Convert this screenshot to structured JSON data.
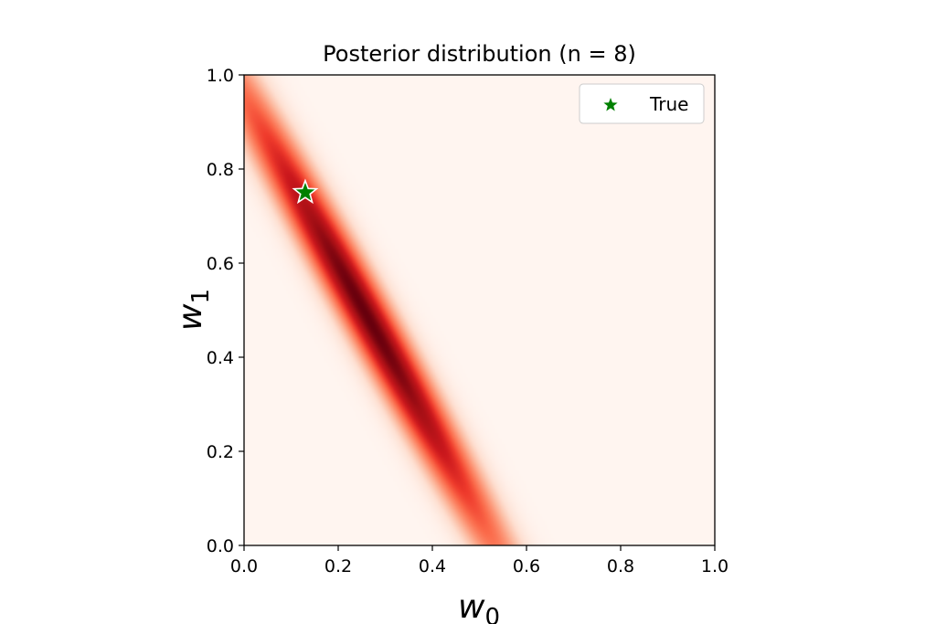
{
  "chart_data": {
    "type": "heatmap",
    "title": "Posterior distribution (n = 8)",
    "xlabel": {
      "symbol": "w",
      "subscript": "0"
    },
    "ylabel": {
      "symbol": "w",
      "subscript": "1"
    },
    "xlim": [
      0.0,
      1.0
    ],
    "ylim": [
      0.0,
      1.0
    ],
    "xticks": [
      "0.0",
      "0.2",
      "0.4",
      "0.6",
      "0.8",
      "1.0"
    ],
    "yticks": [
      "0.0",
      "0.2",
      "0.4",
      "0.6",
      "0.8",
      "1.0"
    ],
    "colormap": "Reds",
    "grid": false,
    "density": {
      "mode_w0": 0.26,
      "mode_w1": 0.49,
      "ridge_line": {
        "w0_intercept": 0.52,
        "w1_intercept": 0.93
      },
      "spread_across": 0.035,
      "spread_along": 0.45
    },
    "true_point": {
      "name": "True",
      "w0": 0.13,
      "w1": 0.75,
      "color": "#008000"
    },
    "legend": {
      "placement": "top-right",
      "entries": [
        {
          "label": "True",
          "marker": "star",
          "color": "#008000"
        }
      ]
    }
  }
}
